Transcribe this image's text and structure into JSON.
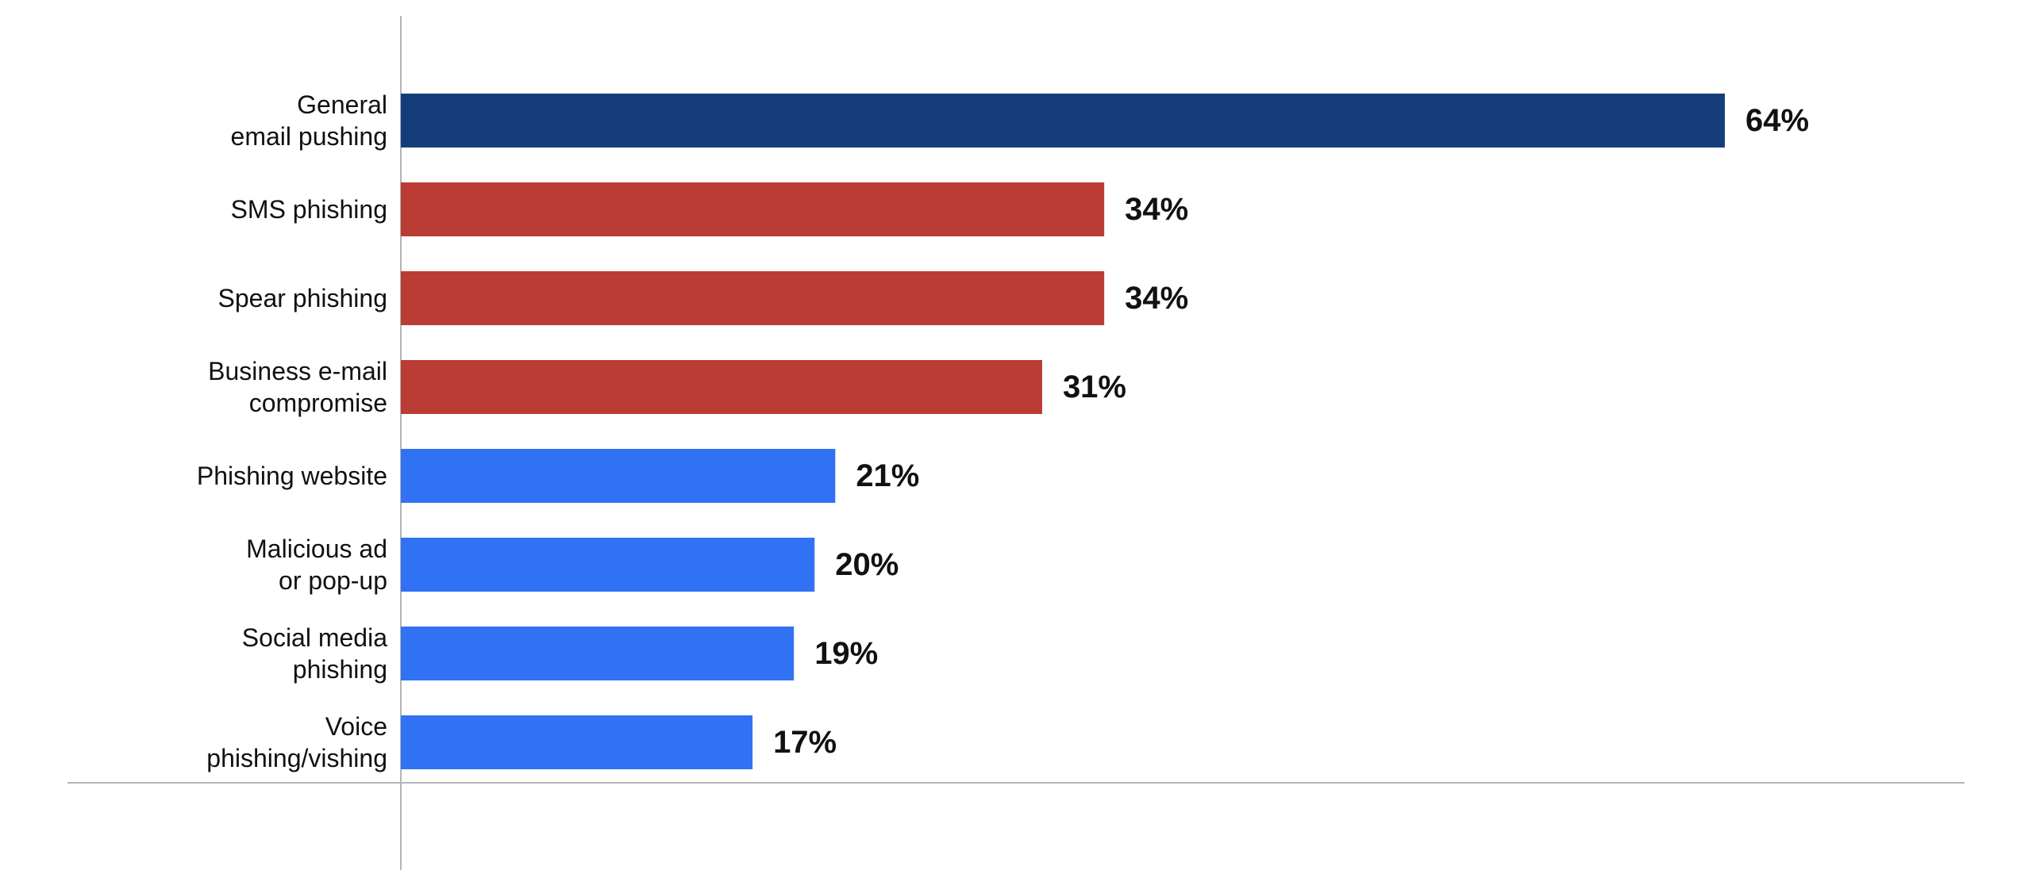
{
  "chart_data": {
    "type": "bar",
    "orientation": "horizontal",
    "categories": [
      [
        "General",
        "email pushing"
      ],
      [
        "SMS phishing"
      ],
      [
        "Spear phishing"
      ],
      [
        "Business e-mail",
        "compromise"
      ],
      [
        "Phishing website"
      ],
      [
        "Malicious ad",
        "or pop-up"
      ],
      [
        "Social media",
        "phishing"
      ],
      [
        "Voice",
        "phishing/vishing"
      ]
    ],
    "values": [
      64,
      34,
      34,
      31,
      21,
      20,
      19,
      17
    ],
    "value_labels": [
      "64%",
      "34%",
      "34%",
      "31%",
      "21%",
      "20%",
      "19%",
      "17%"
    ],
    "bar_colors": [
      "#153d7a",
      "#bb3b35",
      "#bb3b35",
      "#bb3b35",
      "#3172f5",
      "#3172f5",
      "#3172f5",
      "#3172f5"
    ],
    "xlim": [
      0,
      64
    ],
    "grid": false,
    "legend": "none"
  }
}
